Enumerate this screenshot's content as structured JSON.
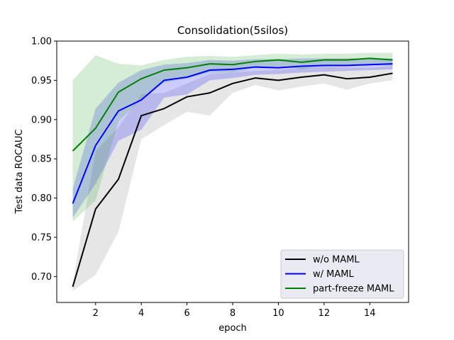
{
  "chart_data": {
    "type": "line",
    "title": "Consolidation(5silos)",
    "xlabel": "epoch",
    "ylabel": "Test data ROCAUC",
    "xlim": [
      0.3,
      15.7
    ],
    "ylim": [
      0.667,
      1.0
    ],
    "xticks": [
      2,
      4,
      6,
      8,
      10,
      12,
      14
    ],
    "yticks": [
      0.7,
      0.75,
      0.8,
      0.85,
      0.9,
      0.95,
      1.0
    ],
    "ytick_labels": [
      "0.70",
      "0.75",
      "0.80",
      "0.85",
      "0.90",
      "0.95",
      "1.00"
    ],
    "grid": false,
    "legend_position": "lower-right",
    "x": [
      1,
      2,
      3,
      4,
      5,
      6,
      7,
      8,
      9,
      10,
      11,
      12,
      13,
      14,
      15
    ],
    "series": [
      {
        "name": "w/o MAML",
        "color": "#000000",
        "band_color": "#808080",
        "values": [
          0.687,
          0.786,
          0.824,
          0.905,
          0.914,
          0.929,
          0.934,
          0.946,
          0.953,
          0.95,
          0.954,
          0.957,
          0.952,
          0.954,
          0.959
        ],
        "lower": [
          0.682,
          0.702,
          0.757,
          0.875,
          0.893,
          0.91,
          0.905,
          0.934,
          0.944,
          0.937,
          0.942,
          0.946,
          0.938,
          0.946,
          0.95
        ],
        "upper": [
          0.692,
          0.86,
          0.89,
          0.932,
          0.934,
          0.946,
          0.958,
          0.96,
          0.962,
          0.963,
          0.966,
          0.967,
          0.966,
          0.966,
          0.968
        ]
      },
      {
        "name": "w/ MAML",
        "color": "#0000ff",
        "band_color": "#0000ff",
        "values": [
          0.793,
          0.867,
          0.911,
          0.925,
          0.95,
          0.954,
          0.963,
          0.964,
          0.967,
          0.966,
          0.968,
          0.969,
          0.969,
          0.97,
          0.971
        ],
        "lower": [
          0.775,
          0.818,
          0.873,
          0.887,
          0.928,
          0.932,
          0.95,
          0.953,
          0.957,
          0.958,
          0.96,
          0.961,
          0.962,
          0.963,
          0.964
        ],
        "upper": [
          0.812,
          0.914,
          0.947,
          0.963,
          0.97,
          0.972,
          0.976,
          0.975,
          0.977,
          0.977,
          0.978,
          0.978,
          0.978,
          0.978,
          0.978
        ]
      },
      {
        "name": "part-freeze MAML",
        "color": "#008000",
        "band_color": "#2ca02c",
        "values": [
          0.86,
          0.889,
          0.935,
          0.952,
          0.963,
          0.966,
          0.971,
          0.97,
          0.974,
          0.976,
          0.973,
          0.976,
          0.976,
          0.978,
          0.976
        ],
        "lower": [
          0.77,
          0.797,
          0.898,
          0.925,
          0.947,
          0.952,
          0.96,
          0.96,
          0.966,
          0.968,
          0.964,
          0.969,
          0.969,
          0.97,
          0.968
        ],
        "upper": [
          0.95,
          0.982,
          0.971,
          0.969,
          0.976,
          0.98,
          0.981,
          0.98,
          0.982,
          0.984,
          0.983,
          0.984,
          0.984,
          0.985,
          0.985
        ]
      }
    ]
  }
}
